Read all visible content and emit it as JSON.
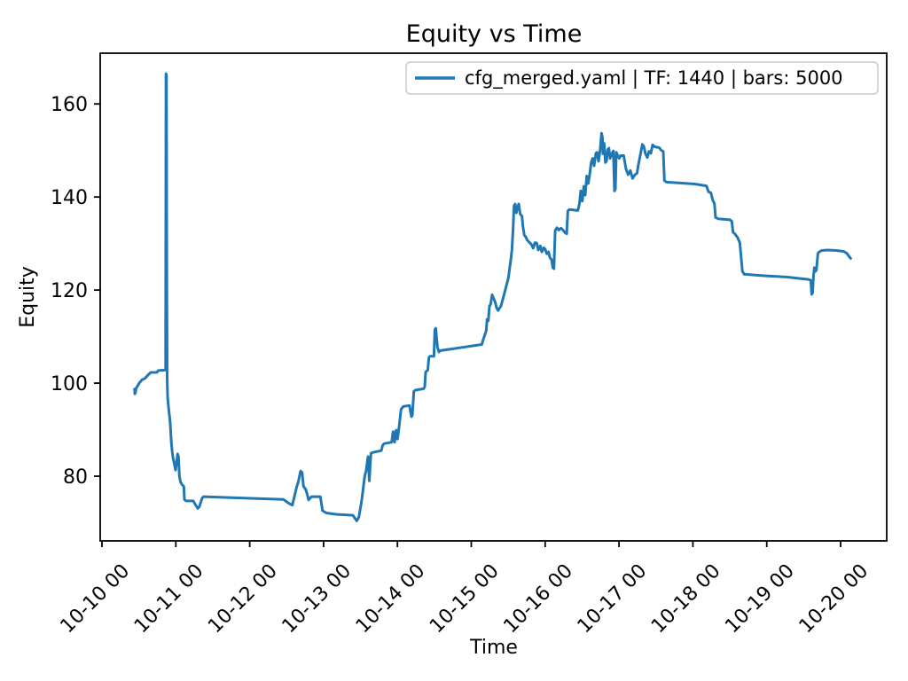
{
  "figure": {
    "title": "Equity vs Time",
    "xlabel": "Time",
    "ylabel": "Equity",
    "legend_label": "cfg_merged.yaml | TF: 1440 | bars: 5000"
  },
  "colors": {
    "line": "#1f77b4",
    "spine": "#000000",
    "legend_border": "#cccccc",
    "background": "#ffffff"
  },
  "chart_data": {
    "type": "line",
    "title": "Equity vs Time",
    "xlabel": "Time",
    "ylabel": "Equity",
    "grid": false,
    "legend_position": "upper right",
    "x_tick_rotation": 45,
    "x_unit": "days since 10-10 00:00",
    "x_ticks": [
      {
        "x": 0,
        "label": "10-10 00"
      },
      {
        "x": 1,
        "label": "10-11 00"
      },
      {
        "x": 2,
        "label": "10-12 00"
      },
      {
        "x": 3,
        "label": "10-13 00"
      },
      {
        "x": 4,
        "label": "10-14 00"
      },
      {
        "x": 5,
        "label": "10-15 00"
      },
      {
        "x": 6,
        "label": "10-16 00"
      },
      {
        "x": 7,
        "label": "10-17 00"
      },
      {
        "x": 8,
        "label": "10-18 00"
      },
      {
        "x": 9,
        "label": "10-19 00"
      },
      {
        "x": 10,
        "label": "10-20 00"
      }
    ],
    "y_ticks": [
      80,
      100,
      120,
      140,
      160
    ],
    "x_range": [
      -0.024,
      10.624
    ],
    "y_range": [
      66.1,
      170.9
    ],
    "series": [
      {
        "name": "cfg_merged.yaml | TF: 1440 | bars: 5000",
        "color": "#1f77b4",
        "points": [
          [
            0.44,
            98.7
          ],
          [
            0.445,
            97.7
          ],
          [
            0.452,
            97.9
          ],
          [
            0.462,
            98.9
          ],
          [
            0.475,
            99.2
          ],
          [
            0.504,
            100.0
          ],
          [
            0.54,
            100.7
          ],
          [
            0.58,
            101.0
          ],
          [
            0.64,
            102.0
          ],
          [
            0.66,
            102.3
          ],
          [
            0.742,
            102.3
          ],
          [
            0.762,
            102.7
          ],
          [
            0.856,
            102.8
          ],
          [
            0.862,
            102.9
          ],
          [
            0.867,
            166.5
          ],
          [
            0.873,
            166.2
          ],
          [
            0.877,
            125.0
          ],
          [
            0.882,
            101.0
          ],
          [
            0.89,
            96.8
          ],
          [
            0.902,
            94.7
          ],
          [
            0.922,
            91.8
          ],
          [
            0.94,
            87.0
          ],
          [
            0.952,
            85.1
          ],
          [
            0.963,
            83.9
          ],
          [
            0.976,
            82.9
          ],
          [
            0.996,
            81.3
          ],
          [
            1.024,
            84.8
          ],
          [
            1.036,
            84.2
          ],
          [
            1.048,
            80.0
          ],
          [
            1.065,
            78.7
          ],
          [
            1.089,
            78.1
          ],
          [
            1.108,
            77.8
          ],
          [
            1.116,
            75.0
          ],
          [
            1.137,
            74.7
          ],
          [
            1.236,
            74.7
          ],
          [
            1.257,
            74.1
          ],
          [
            1.296,
            73.1
          ],
          [
            1.317,
            73.4
          ],
          [
            1.356,
            75.3
          ],
          [
            1.377,
            75.6
          ],
          [
            2.457,
            75.0
          ],
          [
            2.537,
            74.1
          ],
          [
            2.577,
            73.8
          ],
          [
            2.637,
            77.8
          ],
          [
            2.657,
            78.7
          ],
          [
            2.689,
            81.1
          ],
          [
            2.709,
            80.8
          ],
          [
            2.729,
            77.8
          ],
          [
            2.757,
            77.2
          ],
          [
            2.777,
            76.2
          ],
          [
            2.797,
            74.9
          ],
          [
            2.837,
            75.6
          ],
          [
            2.957,
            75.6
          ],
          [
            2.986,
            72.6
          ],
          [
            3.037,
            72.1
          ],
          [
            3.178,
            71.8
          ],
          [
            3.397,
            71.6
          ],
          [
            3.449,
            70.4
          ],
          [
            3.478,
            71.2
          ],
          [
            3.517,
            74.9
          ],
          [
            3.557,
            80.0
          ],
          [
            3.577,
            81.3
          ],
          [
            3.601,
            84.2
          ],
          [
            3.619,
            79.0
          ],
          [
            3.641,
            84.9
          ],
          [
            3.661,
            85.1
          ],
          [
            3.781,
            85.5
          ],
          [
            3.802,
            86.7
          ],
          [
            3.821,
            87.0
          ],
          [
            3.922,
            87.3
          ],
          [
            3.941,
            89.6
          ],
          [
            3.961,
            87.3
          ],
          [
            3.982,
            89.9
          ],
          [
            4.001,
            88.0
          ],
          [
            4.022,
            90.5
          ],
          [
            4.049,
            94.4
          ],
          [
            4.082,
            95.0
          ],
          [
            4.162,
            95.2
          ],
          [
            4.19,
            92.8
          ],
          [
            4.202,
            93.1
          ],
          [
            4.222,
            98.2
          ],
          [
            4.242,
            98.5
          ],
          [
            4.354,
            98.8
          ],
          [
            4.37,
            99.2
          ],
          [
            4.382,
            102.4
          ],
          [
            4.41,
            102.8
          ],
          [
            4.426,
            105.5
          ],
          [
            4.442,
            105.8
          ],
          [
            4.494,
            105.8
          ],
          [
            4.506,
            111.5
          ],
          [
            4.518,
            111.8
          ],
          [
            4.542,
            107.7
          ],
          [
            4.562,
            106.7
          ],
          [
            4.582,
            107.0
          ],
          [
            5.142,
            108.3
          ],
          [
            5.17,
            109.8
          ],
          [
            5.202,
            111.2
          ],
          [
            5.214,
            113.7
          ],
          [
            5.23,
            113.4
          ],
          [
            5.246,
            116.6
          ],
          [
            5.262,
            116.9
          ],
          [
            5.282,
            119.0
          ],
          [
            5.322,
            117.5
          ],
          [
            5.342,
            116.2
          ],
          [
            5.362,
            115.6
          ],
          [
            5.402,
            116.6
          ],
          [
            5.442,
            118.9
          ],
          [
            5.502,
            122.6
          ],
          [
            5.534,
            126.4
          ],
          [
            5.55,
            128.6
          ],
          [
            5.567,
            133.4
          ],
          [
            5.579,
            138.1
          ],
          [
            5.594,
            138.5
          ],
          [
            5.61,
            136.6
          ],
          [
            5.627,
            137.8
          ],
          [
            5.642,
            138.5
          ],
          [
            5.663,
            136.3
          ],
          [
            5.687,
            135.9
          ],
          [
            5.699,
            133.7
          ],
          [
            5.718,
            131.8
          ],
          [
            5.735,
            131.5
          ],
          [
            5.759,
            130.7
          ],
          [
            5.79,
            130.2
          ],
          [
            5.814,
            129.8
          ],
          [
            5.838,
            129.0
          ],
          [
            5.862,
            130.2
          ],
          [
            5.886,
            130.1
          ],
          [
            5.907,
            128.6
          ],
          [
            5.934,
            129.5
          ],
          [
            5.955,
            128.2
          ],
          [
            5.979,
            129.1
          ],
          [
            5.999,
            128.8
          ],
          [
            6.023,
            127.8
          ],
          [
            6.047,
            128.2
          ],
          [
            6.063,
            127.0
          ],
          [
            6.087,
            126.5
          ],
          [
            6.103,
            124.8
          ],
          [
            6.119,
            124.6
          ],
          [
            6.135,
            132.8
          ],
          [
            6.159,
            133.4
          ],
          [
            6.183,
            132.9
          ],
          [
            6.215,
            133.3
          ],
          [
            6.247,
            132.8
          ],
          [
            6.271,
            132.3
          ],
          [
            6.291,
            132.1
          ],
          [
            6.307,
            137.0
          ],
          [
            6.327,
            137.3
          ],
          [
            6.443,
            137.1
          ],
          [
            6.463,
            138.5
          ],
          [
            6.483,
            141.3
          ],
          [
            6.503,
            139.1
          ],
          [
            6.523,
            142.3
          ],
          [
            6.543,
            140.4
          ],
          [
            6.563,
            144.5
          ],
          [
            6.583,
            142.9
          ],
          [
            6.603,
            144.8
          ],
          [
            6.623,
            147.4
          ],
          [
            6.643,
            148.3
          ],
          [
            6.663,
            146.7
          ],
          [
            6.687,
            149.4
          ],
          [
            6.703,
            149.6
          ],
          [
            6.723,
            147.7
          ],
          [
            6.743,
            149.9
          ],
          [
            6.763,
            153.7
          ],
          [
            6.775,
            152.8
          ],
          [
            6.783,
            149.3
          ],
          [
            6.799,
            151.5
          ],
          [
            6.815,
            147.4
          ],
          [
            6.831,
            147.7
          ],
          [
            6.847,
            150.2
          ],
          [
            6.863,
            150.5
          ],
          [
            6.879,
            148.3
          ],
          [
            6.903,
            149.3
          ],
          [
            6.923,
            149.9
          ],
          [
            6.939,
            141.3
          ],
          [
            6.951,
            141.7
          ],
          [
            6.963,
            149.6
          ],
          [
            6.983,
            148.9
          ],
          [
            7.003,
            148.3
          ],
          [
            7.023,
            148.9
          ],
          [
            7.063,
            148.9
          ],
          [
            7.095,
            146.0
          ],
          [
            7.123,
            144.8
          ],
          [
            7.152,
            145.7
          ],
          [
            7.183,
            144.0
          ],
          [
            7.215,
            144.8
          ],
          [
            7.243,
            145.1
          ],
          [
            7.263,
            147.0
          ],
          [
            7.291,
            149.3
          ],
          [
            7.315,
            151.3
          ],
          [
            7.335,
            150.9
          ],
          [
            7.359,
            149.3
          ],
          [
            7.383,
            148.5
          ],
          [
            7.407,
            149.8
          ],
          [
            7.431,
            149.4
          ],
          [
            7.455,
            151.2
          ],
          [
            7.483,
            150.8
          ],
          [
            7.512,
            150.7
          ],
          [
            7.543,
            150.6
          ],
          [
            7.575,
            150.0
          ],
          [
            7.599,
            149.8
          ],
          [
            7.615,
            143.5
          ],
          [
            7.643,
            143.2
          ],
          [
            7.823,
            143.0
          ],
          [
            8.023,
            142.8
          ],
          [
            8.184,
            142.4
          ],
          [
            8.211,
            141.1
          ],
          [
            8.244,
            140.9
          ],
          [
            8.271,
            139.2
          ],
          [
            8.292,
            138.6
          ],
          [
            8.307,
            135.6
          ],
          [
            8.343,
            135.3
          ],
          [
            8.503,
            135.1
          ],
          [
            8.527,
            134.8
          ],
          [
            8.544,
            132.4
          ],
          [
            8.568,
            132.1
          ],
          [
            8.604,
            131.3
          ],
          [
            8.635,
            130.2
          ],
          [
            8.656,
            126.4
          ],
          [
            8.671,
            124.0
          ],
          [
            8.695,
            123.4
          ],
          [
            8.944,
            123.1
          ],
          [
            9.264,
            122.8
          ],
          [
            9.564,
            122.3
          ],
          [
            9.596,
            122.1
          ],
          [
            9.608,
            119.1
          ],
          [
            9.62,
            119.4
          ],
          [
            9.632,
            123.0
          ],
          [
            9.644,
            124.8
          ],
          [
            9.656,
            124.0
          ],
          [
            9.672,
            124.3
          ],
          [
            9.692,
            127.9
          ],
          [
            9.712,
            128.2
          ],
          [
            9.744,
            128.5
          ],
          [
            9.824,
            128.6
          ],
          [
            9.944,
            128.5
          ],
          [
            10.044,
            128.3
          ],
          [
            10.084,
            127.9
          ],
          [
            10.112,
            127.3
          ],
          [
            10.136,
            126.8
          ]
        ]
      }
    ]
  }
}
